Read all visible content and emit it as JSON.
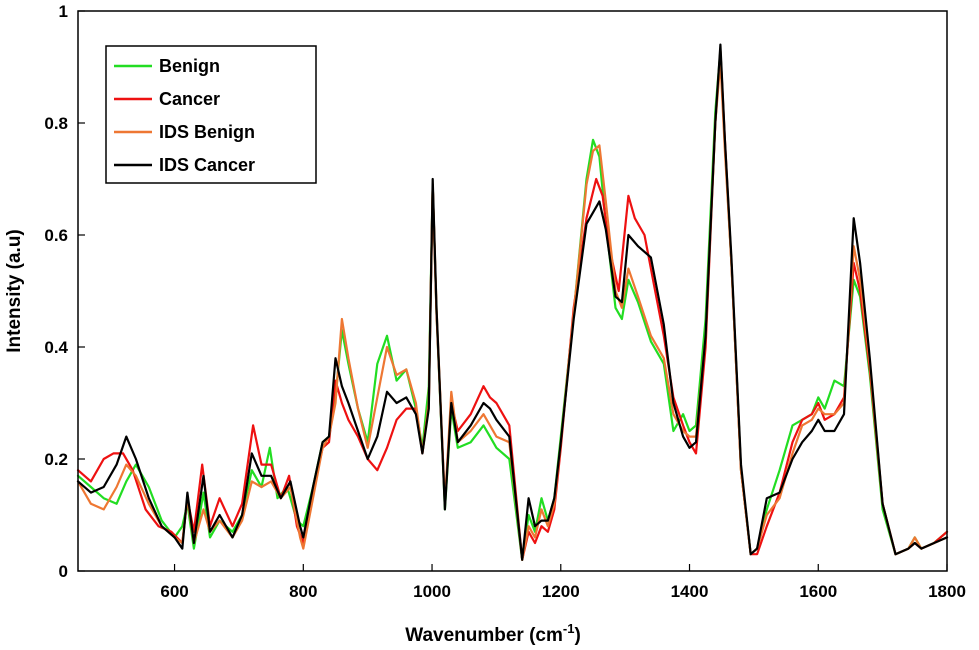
{
  "chart_data": {
    "type": "line",
    "xlabel": "Wavenumber (cm",
    "xlabel_sup": "-1",
    "xlabel_close": ")",
    "ylabel": "Intensity (a.u)",
    "xlim": [
      450,
      1800
    ],
    "ylim": [
      0,
      1
    ],
    "xticks": [
      600,
      800,
      1000,
      1200,
      1400,
      1600,
      1800
    ],
    "yticks": [
      0,
      0.2,
      0.4,
      0.6,
      0.8,
      1
    ],
    "ytick_labels": [
      "0",
      "0.2",
      "0.4",
      "0.6",
      "0.8",
      "1"
    ],
    "legend_position": "top-left",
    "grid": false,
    "series": [
      {
        "name": "Benign",
        "color": "#22dd22",
        "x": [
          450,
          470,
          490,
          510,
          525,
          540,
          560,
          580,
          600,
          612,
          620,
          630,
          645,
          655,
          670,
          690,
          705,
          720,
          735,
          748,
          760,
          775,
          790,
          800,
          815,
          830,
          840,
          850,
          860,
          870,
          885,
          900,
          915,
          930,
          945,
          960,
          975,
          985,
          995,
          1001,
          1007,
          1020,
          1030,
          1040,
          1060,
          1080,
          1090,
          1100,
          1120,
          1140,
          1150,
          1160,
          1170,
          1180,
          1190,
          1200,
          1220,
          1240,
          1250,
          1260,
          1270,
          1285,
          1295,
          1305,
          1320,
          1340,
          1360,
          1375,
          1390,
          1400,
          1410,
          1425,
          1440,
          1448,
          1455,
          1465,
          1480,
          1495,
          1505,
          1520,
          1540,
          1560,
          1575,
          1590,
          1600,
          1610,
          1625,
          1640,
          1655,
          1665,
          1680,
          1700,
          1720,
          1740,
          1750,
          1760,
          1780,
          1800
        ],
        "y": [
          0.17,
          0.15,
          0.13,
          0.12,
          0.16,
          0.19,
          0.15,
          0.09,
          0.06,
          0.08,
          0.12,
          0.04,
          0.14,
          0.06,
          0.09,
          0.07,
          0.1,
          0.18,
          0.15,
          0.22,
          0.13,
          0.15,
          0.09,
          0.08,
          0.15,
          0.23,
          0.24,
          0.31,
          0.43,
          0.37,
          0.29,
          0.23,
          0.37,
          0.42,
          0.34,
          0.36,
          0.29,
          0.22,
          0.33,
          0.69,
          0.46,
          0.11,
          0.29,
          0.22,
          0.23,
          0.26,
          0.24,
          0.22,
          0.2,
          0.02,
          0.1,
          0.07,
          0.13,
          0.09,
          0.13,
          0.24,
          0.46,
          0.7,
          0.77,
          0.74,
          0.62,
          0.47,
          0.45,
          0.52,
          0.48,
          0.41,
          0.37,
          0.25,
          0.28,
          0.25,
          0.26,
          0.45,
          0.82,
          0.93,
          0.76,
          0.55,
          0.18,
          0.03,
          0.04,
          0.11,
          0.18,
          0.26,
          0.27,
          0.28,
          0.31,
          0.29,
          0.34,
          0.33,
          0.52,
          0.49,
          0.35,
          0.11,
          0.03,
          0.04,
          0.06,
          0.04,
          0.05,
          0.07
        ]
      },
      {
        "name": "Cancer",
        "color": "#ee1111",
        "x": [
          450,
          470,
          490,
          505,
          520,
          535,
          555,
          575,
          595,
          612,
          620,
          630,
          643,
          655,
          670,
          690,
          705,
          722,
          735,
          750,
          765,
          778,
          790,
          800,
          815,
          830,
          840,
          850,
          860,
          870,
          885,
          900,
          915,
          930,
          945,
          960,
          975,
          985,
          995,
          1001,
          1007,
          1020,
          1030,
          1040,
          1060,
          1080,
          1090,
          1100,
          1120,
          1140,
          1150,
          1160,
          1170,
          1180,
          1190,
          1200,
          1220,
          1240,
          1255,
          1265,
          1275,
          1290,
          1305,
          1315,
          1330,
          1345,
          1360,
          1375,
          1390,
          1400,
          1410,
          1425,
          1440,
          1448,
          1455,
          1465,
          1480,
          1495,
          1505,
          1520,
          1540,
          1560,
          1575,
          1590,
          1600,
          1610,
          1625,
          1640,
          1655,
          1665,
          1680,
          1700,
          1720,
          1740,
          1750,
          1760,
          1780,
          1800
        ],
        "y": [
          0.18,
          0.16,
          0.2,
          0.21,
          0.21,
          0.18,
          0.11,
          0.08,
          0.07,
          0.05,
          0.13,
          0.07,
          0.19,
          0.08,
          0.13,
          0.08,
          0.12,
          0.26,
          0.19,
          0.19,
          0.13,
          0.17,
          0.08,
          0.05,
          0.14,
          0.22,
          0.23,
          0.34,
          0.3,
          0.27,
          0.24,
          0.2,
          0.18,
          0.22,
          0.27,
          0.29,
          0.29,
          0.21,
          0.3,
          0.69,
          0.46,
          0.12,
          0.3,
          0.25,
          0.28,
          0.33,
          0.31,
          0.3,
          0.26,
          0.02,
          0.07,
          0.05,
          0.08,
          0.07,
          0.11,
          0.22,
          0.47,
          0.63,
          0.7,
          0.67,
          0.58,
          0.5,
          0.67,
          0.63,
          0.6,
          0.51,
          0.42,
          0.31,
          0.26,
          0.23,
          0.21,
          0.4,
          0.8,
          0.93,
          0.77,
          0.55,
          0.18,
          0.03,
          0.03,
          0.08,
          0.14,
          0.23,
          0.27,
          0.28,
          0.3,
          0.27,
          0.28,
          0.31,
          0.55,
          0.5,
          0.36,
          0.12,
          0.03,
          0.04,
          0.05,
          0.04,
          0.05,
          0.07
        ]
      },
      {
        "name": "IDS Benign",
        "color": "#ee7733",
        "x": [
          450,
          470,
          490,
          510,
          525,
          540,
          560,
          580,
          600,
          612,
          620,
          630,
          645,
          655,
          670,
          690,
          705,
          720,
          735,
          750,
          765,
          780,
          795,
          800,
          815,
          830,
          840,
          850,
          860,
          870,
          885,
          900,
          915,
          930,
          945,
          960,
          975,
          985,
          995,
          1001,
          1007,
          1020,
          1030,
          1040,
          1060,
          1080,
          1090,
          1100,
          1120,
          1140,
          1150,
          1160,
          1170,
          1180,
          1190,
          1200,
          1220,
          1240,
          1250,
          1260,
          1270,
          1285,
          1295,
          1305,
          1320,
          1340,
          1360,
          1375,
          1390,
          1400,
          1410,
          1425,
          1440,
          1448,
          1455,
          1465,
          1480,
          1495,
          1505,
          1520,
          1540,
          1560,
          1575,
          1590,
          1600,
          1610,
          1625,
          1640,
          1655,
          1665,
          1680,
          1700,
          1720,
          1740,
          1750,
          1760,
          1780,
          1800
        ],
        "y": [
          0.16,
          0.12,
          0.11,
          0.15,
          0.19,
          0.17,
          0.12,
          0.08,
          0.06,
          0.05,
          0.13,
          0.05,
          0.11,
          0.07,
          0.09,
          0.06,
          0.09,
          0.16,
          0.15,
          0.16,
          0.13,
          0.15,
          0.06,
          0.04,
          0.13,
          0.22,
          0.24,
          0.3,
          0.45,
          0.38,
          0.29,
          0.22,
          0.31,
          0.4,
          0.35,
          0.36,
          0.3,
          0.21,
          0.3,
          0.69,
          0.47,
          0.12,
          0.32,
          0.23,
          0.25,
          0.28,
          0.26,
          0.24,
          0.23,
          0.02,
          0.08,
          0.06,
          0.11,
          0.08,
          0.12,
          0.23,
          0.46,
          0.69,
          0.75,
          0.76,
          0.66,
          0.5,
          0.47,
          0.54,
          0.49,
          0.42,
          0.38,
          0.28,
          0.25,
          0.24,
          0.24,
          0.42,
          0.8,
          0.91,
          0.75,
          0.55,
          0.18,
          0.03,
          0.04,
          0.1,
          0.13,
          0.21,
          0.26,
          0.27,
          0.29,
          0.28,
          0.28,
          0.3,
          0.58,
          0.52,
          0.37,
          0.12,
          0.03,
          0.04,
          0.06,
          0.04,
          0.05,
          0.06
        ]
      },
      {
        "name": "IDS Cancer",
        "color": "#000000",
        "x": [
          450,
          470,
          490,
          510,
          525,
          540,
          560,
          580,
          600,
          612,
          620,
          630,
          645,
          655,
          670,
          690,
          705,
          720,
          735,
          750,
          765,
          780,
          795,
          800,
          815,
          830,
          840,
          850,
          860,
          870,
          885,
          900,
          915,
          930,
          945,
          960,
          975,
          985,
          995,
          1001,
          1007,
          1020,
          1030,
          1040,
          1060,
          1080,
          1090,
          1100,
          1120,
          1140,
          1150,
          1160,
          1170,
          1180,
          1190,
          1200,
          1220,
          1240,
          1250,
          1260,
          1270,
          1285,
          1295,
          1305,
          1320,
          1340,
          1360,
          1375,
          1390,
          1400,
          1410,
          1425,
          1440,
          1448,
          1455,
          1465,
          1480,
          1495,
          1505,
          1520,
          1540,
          1560,
          1575,
          1590,
          1600,
          1610,
          1625,
          1640,
          1655,
          1665,
          1680,
          1700,
          1720,
          1740,
          1750,
          1760,
          1780,
          1800
        ],
        "y": [
          0.16,
          0.14,
          0.15,
          0.19,
          0.24,
          0.2,
          0.13,
          0.08,
          0.06,
          0.04,
          0.14,
          0.05,
          0.17,
          0.07,
          0.1,
          0.06,
          0.1,
          0.21,
          0.17,
          0.17,
          0.13,
          0.16,
          0.08,
          0.06,
          0.15,
          0.23,
          0.24,
          0.38,
          0.33,
          0.3,
          0.25,
          0.2,
          0.24,
          0.32,
          0.3,
          0.31,
          0.28,
          0.21,
          0.29,
          0.7,
          0.47,
          0.11,
          0.3,
          0.23,
          0.26,
          0.3,
          0.29,
          0.27,
          0.24,
          0.02,
          0.13,
          0.08,
          0.09,
          0.09,
          0.13,
          0.23,
          0.45,
          0.62,
          0.64,
          0.66,
          0.61,
          0.49,
          0.48,
          0.6,
          0.58,
          0.56,
          0.44,
          0.3,
          0.24,
          0.22,
          0.23,
          0.42,
          0.8,
          0.94,
          0.77,
          0.56,
          0.19,
          0.03,
          0.04,
          0.13,
          0.14,
          0.2,
          0.23,
          0.25,
          0.27,
          0.25,
          0.25,
          0.28,
          0.63,
          0.55,
          0.38,
          0.12,
          0.03,
          0.04,
          0.05,
          0.04,
          0.05,
          0.06
        ]
      }
    ]
  }
}
